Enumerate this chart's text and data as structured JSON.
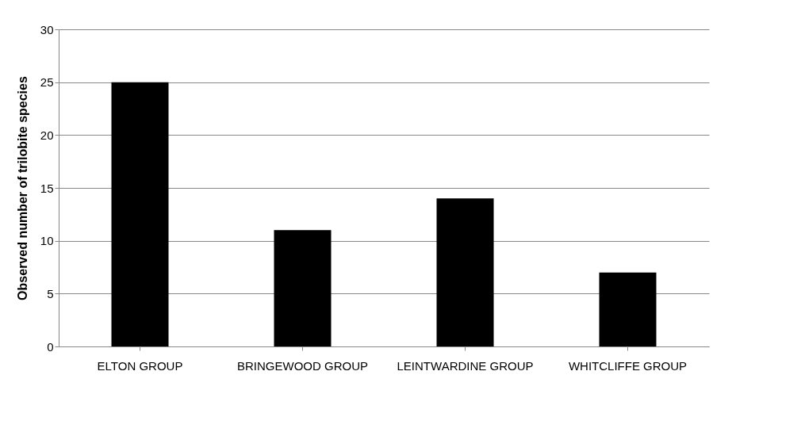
{
  "chart_data": {
    "type": "bar",
    "ylabel": "Observed number of trilobite species",
    "categories": [
      "ELTON GROUP",
      "BRINGEWOOD GROUP",
      "LEINTWARDINE GROUP",
      "WHITCLIFFE GROUP"
    ],
    "values": [
      25,
      11,
      14,
      7
    ],
    "color": "#000000",
    "ylim": [
      0,
      30
    ],
    "yticks": [
      0,
      5,
      10,
      15,
      20,
      25,
      30
    ],
    "grid": "y"
  }
}
